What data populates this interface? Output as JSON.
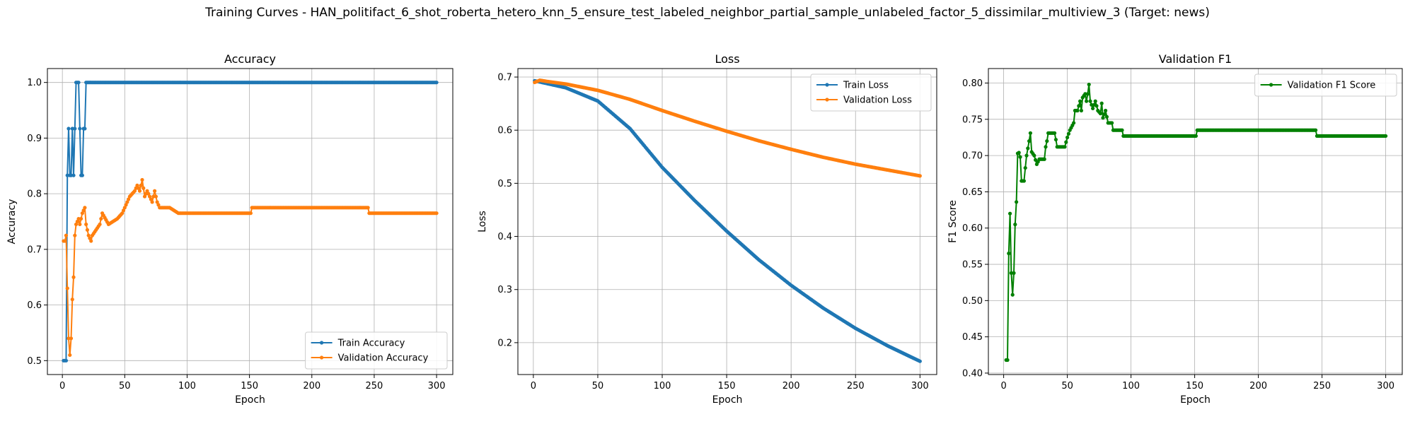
{
  "figure": {
    "title": "Training Curves - HAN_politifact_6_shot_roberta_hetero_knn_5_ensure_test_labeled_neighbor_partial_sample_unlabeled_factor_5_dissimilar_multiview_3 (Target: news)"
  },
  "colors": {
    "blue": "#1f77b4",
    "orange": "#ff7f0e",
    "green": "#008000"
  },
  "chart_data": [
    {
      "type": "line",
      "title": "Accuracy",
      "xlabel": "Epoch",
      "ylabel": "Accuracy",
      "xlim": [
        -12,
        313
      ],
      "ylim": [
        0.475,
        1.025
      ],
      "xticks": [
        0,
        50,
        100,
        150,
        200,
        250,
        300
      ],
      "yticks": [
        0.5,
        0.6,
        0.7,
        0.8,
        0.9,
        1.0
      ],
      "ytick_labels": [
        "0.5",
        "0.6",
        "0.7",
        "0.8",
        "0.9",
        "1.0"
      ],
      "grid": true,
      "legend": "lower-right",
      "x_range": [
        1,
        300
      ],
      "series": [
        {
          "name": "Train Accuracy",
          "color": "#1f77b4",
          "points": [
            [
              1,
              0.5
            ],
            [
              2,
              0.5
            ],
            [
              3,
              0.5
            ],
            [
              4,
              0.833
            ],
            [
              5,
              0.917
            ],
            [
              6,
              0.833
            ],
            [
              7,
              0.833
            ],
            [
              8,
              0.917
            ],
            [
              9,
              0.833
            ],
            [
              10,
              0.917
            ],
            [
              11,
              1.0
            ],
            [
              12,
              1.0
            ],
            [
              13,
              1.0
            ],
            [
              14,
              0.917
            ],
            [
              15,
              0.833
            ],
            [
              16,
              0.833
            ],
            [
              17,
              0.917
            ],
            [
              18,
              0.917
            ],
            [
              19,
              1.0
            ],
            [
              300,
              1.0
            ]
          ]
        },
        {
          "name": "Validation Accuracy",
          "color": "#ff7f0e",
          "points": [
            [
              1,
              0.715
            ],
            [
              2,
              0.715
            ],
            [
              3,
              0.725
            ],
            [
              4,
              0.63
            ],
            [
              5,
              0.54
            ],
            [
              6,
              0.51
            ],
            [
              7,
              0.54
            ],
            [
              8,
              0.61
            ],
            [
              9,
              0.65
            ],
            [
              10,
              0.725
            ],
            [
              11,
              0.745
            ],
            [
              13,
              0.755
            ],
            [
              14,
              0.745
            ],
            [
              15,
              0.755
            ],
            [
              16,
              0.765
            ],
            [
              18,
              0.775
            ],
            [
              19,
              0.745
            ],
            [
              21,
              0.725
            ],
            [
              23,
              0.715
            ],
            [
              24,
              0.725
            ],
            [
              30,
              0.745
            ],
            [
              32,
              0.765
            ],
            [
              37,
              0.745
            ],
            [
              44,
              0.755
            ],
            [
              48,
              0.765
            ],
            [
              50,
              0.775
            ],
            [
              54,
              0.795
            ],
            [
              58,
              0.805
            ],
            [
              60,
              0.815
            ],
            [
              62,
              0.805
            ],
            [
              64,
              0.825
            ],
            [
              66,
              0.795
            ],
            [
              68,
              0.805
            ],
            [
              70,
              0.795
            ],
            [
              72,
              0.785
            ],
            [
              74,
              0.805
            ],
            [
              76,
              0.785
            ],
            [
              78,
              0.775
            ],
            [
              82,
              0.775
            ],
            [
              86,
              0.775
            ],
            [
              93,
              0.765
            ],
            [
              151,
              0.765
            ],
            [
              152,
              0.775
            ],
            [
              245,
              0.775
            ],
            [
              246,
              0.765
            ],
            [
              300,
              0.765
            ]
          ]
        }
      ]
    },
    {
      "type": "line",
      "title": "Loss",
      "xlabel": "Epoch",
      "ylabel": "Loss",
      "xlim": [
        -12,
        313
      ],
      "ylim": [
        0.14,
        0.716
      ],
      "xticks": [
        0,
        50,
        100,
        150,
        200,
        250,
        300
      ],
      "yticks": [
        0.2,
        0.3,
        0.4,
        0.5,
        0.6,
        0.7
      ],
      "ytick_labels": [
        "0.2",
        "0.3",
        "0.4",
        "0.5",
        "0.6",
        "0.7"
      ],
      "grid": true,
      "legend": "upper-right",
      "x_range": [
        1,
        300
      ],
      "series": [
        {
          "name": "Train Loss",
          "color": "#1f77b4",
          "points": [
            [
              1,
              0.693
            ],
            [
              25,
              0.68
            ],
            [
              50,
              0.655
            ],
            [
              75,
              0.603
            ],
            [
              100,
              0.53
            ],
            [
              125,
              0.468
            ],
            [
              150,
              0.41
            ],
            [
              175,
              0.356
            ],
            [
              200,
              0.308
            ],
            [
              225,
              0.265
            ],
            [
              250,
              0.227
            ],
            [
              275,
              0.194
            ],
            [
              300,
              0.165
            ]
          ]
        },
        {
          "name": "Validation Loss",
          "color": "#ff7f0e",
          "points": [
            [
              1,
              0.69
            ],
            [
              5,
              0.694
            ],
            [
              10,
              0.692
            ],
            [
              25,
              0.687
            ],
            [
              50,
              0.675
            ],
            [
              75,
              0.658
            ],
            [
              100,
              0.637
            ],
            [
              125,
              0.617
            ],
            [
              150,
              0.598
            ],
            [
              175,
              0.58
            ],
            [
              200,
              0.564
            ],
            [
              225,
              0.549
            ],
            [
              250,
              0.536
            ],
            [
              275,
              0.525
            ],
            [
              300,
              0.514
            ]
          ]
        }
      ]
    },
    {
      "type": "line",
      "title": "Validation F1",
      "xlabel": "Epoch",
      "ylabel": "F1 Score",
      "xlim": [
        -12,
        313
      ],
      "ylim": [
        0.398,
        0.82
      ],
      "xticks": [
        0,
        50,
        100,
        150,
        200,
        250,
        300
      ],
      "yticks": [
        0.4,
        0.45,
        0.5,
        0.55,
        0.6,
        0.65,
        0.7,
        0.75,
        0.8
      ],
      "ytick_labels": [
        "0.40",
        "0.45",
        "0.50",
        "0.55",
        "0.60",
        "0.65",
        "0.70",
        "0.75",
        "0.80"
      ],
      "grid": true,
      "legend": "upper-right",
      "x_range": [
        1,
        300
      ],
      "series": [
        {
          "name": "Validation F1 Score",
          "color": "#008000",
          "points": [
            [
              2,
              0.418
            ],
            [
              3,
              0.418
            ],
            [
              4,
              0.565
            ],
            [
              5,
              0.62
            ],
            [
              6,
              0.538
            ],
            [
              7,
              0.508
            ],
            [
              8,
              0.538
            ],
            [
              9,
              0.605
            ],
            [
              10,
              0.636
            ],
            [
              11,
              0.703
            ],
            [
              12,
              0.704
            ],
            [
              13,
              0.698
            ],
            [
              14,
              0.665
            ],
            [
              16,
              0.665
            ],
            [
              17,
              0.683
            ],
            [
              18,
              0.7
            ],
            [
              19,
              0.71
            ],
            [
              20,
              0.72
            ],
            [
              21,
              0.731
            ],
            [
              22,
              0.705
            ],
            [
              24,
              0.7
            ],
            [
              26,
              0.688
            ],
            [
              28,
              0.695
            ],
            [
              32,
              0.695
            ],
            [
              33,
              0.712
            ],
            [
              34,
              0.72
            ],
            [
              35,
              0.731
            ],
            [
              40,
              0.731
            ],
            [
              41,
              0.722
            ],
            [
              42,
              0.712
            ],
            [
              48,
              0.712
            ],
            [
              50,
              0.725
            ],
            [
              52,
              0.735
            ],
            [
              55,
              0.745
            ],
            [
              56,
              0.762
            ],
            [
              58,
              0.762
            ],
            [
              60,
              0.775
            ],
            [
              61,
              0.762
            ],
            [
              62,
              0.78
            ],
            [
              64,
              0.785
            ],
            [
              65,
              0.775
            ],
            [
              66,
              0.785
            ],
            [
              67,
              0.798
            ],
            [
              68,
              0.775
            ],
            [
              70,
              0.765
            ],
            [
              72,
              0.775
            ],
            [
              74,
              0.762
            ],
            [
              76,
              0.758
            ],
            [
              77,
              0.772
            ],
            [
              78,
              0.752
            ],
            [
              80,
              0.762
            ],
            [
              82,
              0.745
            ],
            [
              85,
              0.745
            ],
            [
              86,
              0.735
            ],
            [
              93,
              0.735
            ],
            [
              94,
              0.727
            ],
            [
              151,
              0.727
            ],
            [
              152,
              0.735
            ],
            [
              245,
              0.735
            ],
            [
              246,
              0.727
            ],
            [
              300,
              0.727
            ]
          ]
        }
      ]
    }
  ]
}
